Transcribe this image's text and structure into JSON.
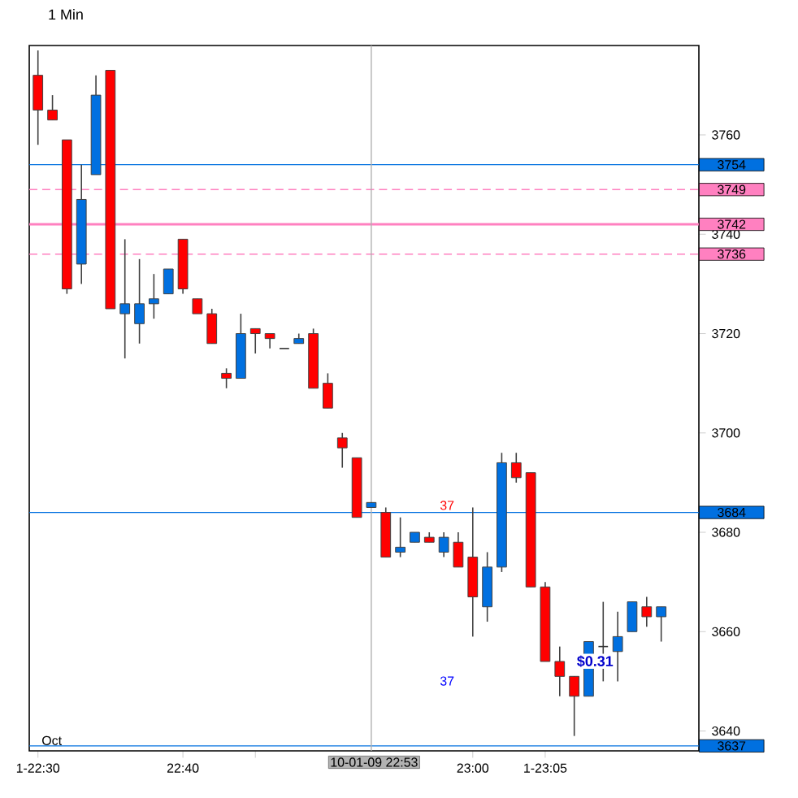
{
  "chart_data": {
    "type": "candlestick",
    "title": "1 Min",
    "x": [
      22.5,
      22.5167,
      22.5333,
      22.55,
      22.5667,
      22.5833,
      22.6,
      22.6167,
      22.6333,
      22.65,
      22.6667,
      22.6833,
      22.7,
      22.7167,
      22.7333,
      22.75,
      22.7667,
      22.7833,
      22.8,
      22.8167,
      22.8333,
      22.85,
      22.8667,
      22.8833,
      22.9,
      22.9167,
      22.9333,
      22.95,
      22.9667,
      22.9833,
      23.0,
      23.0167,
      23.0333,
      23.05,
      23.0667,
      23.0833,
      23.1,
      23.1167,
      23.1333,
      23.15,
      23.1667,
      23.1833,
      23.2,
      23.2167
    ],
    "ohlc": [
      [
        3772,
        3777,
        3758,
        3765
      ],
      [
        3765,
        3768,
        3763,
        3763
      ],
      [
        3759,
        3759,
        3728,
        3729
      ],
      [
        3734,
        3754,
        3730,
        3747
      ],
      [
        3752,
        3772,
        3752,
        3768
      ],
      [
        3773,
        3773,
        3725,
        3725
      ],
      [
        3724,
        3739,
        3715,
        3726
      ],
      [
        3722,
        3735,
        3718,
        3726
      ],
      [
        3726,
        3732,
        3723,
        3727
      ],
      [
        3728,
        3733,
        3728,
        3733
      ],
      [
        3739,
        3739,
        3728,
        3729
      ],
      [
        3727,
        3727,
        3724,
        3724
      ],
      [
        3724,
        3725,
        3718,
        3718
      ],
      [
        3712,
        3713,
        3709,
        3711
      ],
      [
        3711,
        3724,
        3711,
        3720
      ],
      [
        3721,
        3721,
        3716,
        3720
      ],
      [
        3720,
        3720,
        3717,
        3719
      ],
      [
        3717,
        3717,
        3717,
        3717
      ],
      [
        3718,
        3720,
        3718,
        3719
      ],
      [
        3720,
        3721,
        3709,
        3709
      ],
      [
        3710,
        3712,
        3705,
        3705
      ],
      [
        3699,
        3700,
        3693,
        3697
      ],
      [
        3695,
        3695,
        3683,
        3683
      ],
      [
        3685,
        3686,
        3685,
        3686
      ],
      [
        3684,
        3685,
        3675,
        3675
      ],
      [
        3676,
        3683,
        3675,
        3677
      ],
      [
        3678,
        3680,
        3678,
        3680
      ],
      [
        3679,
        3680,
        3678,
        3678
      ],
      [
        3676,
        3680,
        3675,
        3679
      ],
      [
        3678,
        3680,
        3673,
        3673
      ],
      [
        3675,
        3685,
        3659,
        3667
      ],
      [
        3665,
        3676,
        3662,
        3673
      ],
      [
        3673,
        3696,
        3672,
        3694
      ],
      [
        3694,
        3696,
        3690,
        3691
      ],
      [
        3692,
        3692,
        3669,
        3669
      ],
      [
        3669,
        3670,
        3654,
        3654
      ],
      [
        3654,
        3657,
        3647,
        3651
      ],
      [
        3651,
        3651,
        3639,
        3647
      ],
      [
        3647,
        3658,
        3647,
        3658
      ],
      [
        3657,
        3666,
        3650,
        3657
      ],
      [
        3656,
        3664,
        3650,
        3659
      ],
      [
        3660,
        3666,
        3660,
        3666
      ],
      [
        3665,
        3667,
        3661,
        3663
      ],
      [
        3663,
        3665,
        3658,
        3665
      ]
    ],
    "colors": [
      "#ff0000",
      "#ff0000",
      "#ff0000",
      "#0070e0",
      "#0070e0",
      "#ff0000",
      "#0070e0",
      "#0070e0",
      "#0070e0",
      "#0070e0",
      "#ff0000",
      "#ff0000",
      "#ff0000",
      "#ff0000",
      "#0070e0",
      "#ff0000",
      "#ff0000",
      "#333333",
      "#0070e0",
      "#ff0000",
      "#ff0000",
      "#ff0000",
      "#ff0000",
      "#0070e0",
      "#ff0000",
      "#0070e0",
      "#0070e0",
      "#ff0000",
      "#0070e0",
      "#ff0000",
      "#ff0000",
      "#0070e0",
      "#0070e0",
      "#ff0000",
      "#ff0000",
      "#ff0000",
      "#ff0000",
      "#ff0000",
      "#0070e0",
      "#333333",
      "#0070e0",
      "#0070e0",
      "#ff0000",
      "#0070e0"
    ],
    "xlim": [
      22.49,
      23.26
    ],
    "ylim": [
      3636,
      3778
    ],
    "xticks": [
      {
        "value": 22.5,
        "label": "1-22:30"
      },
      {
        "value": 22.6667,
        "label": "22:40"
      },
      {
        "value": 22.75,
        "label": null
      },
      {
        "value": 23.0,
        "label": "23:00"
      },
      {
        "value": 23.0833,
        "label": "1-23:05"
      }
    ],
    "yticks": [
      3640,
      3660,
      3680,
      3700,
      3720,
      3740,
      3760
    ],
    "ref_lines": [
      {
        "axis": "y",
        "value": 3754,
        "label": "3754",
        "color": "#0070e0",
        "line_style": "solid"
      },
      {
        "axis": "y",
        "value": 3749,
        "label": "3749",
        "color": "#ff80c0",
        "line_style": "dashed"
      },
      {
        "axis": "y",
        "value": 3742,
        "label": "3742",
        "color": "#ff80c0",
        "line_style": "solid"
      },
      {
        "axis": "y",
        "value": 3736,
        "label": "3736",
        "color": "#ff80c0",
        "line_style": "dashed"
      },
      {
        "axis": "y",
        "value": 3684,
        "label": "3684",
        "color": "#0070e0",
        "line_style": "solid"
      },
      {
        "axis": "y",
        "value": 3637,
        "label": "3637",
        "color": "#0070e0",
        "line_style": "solid"
      },
      {
        "axis": "x",
        "value": 22.8833,
        "color": "#b0b0b0",
        "line_style": "solid"
      }
    ],
    "annotations": [
      "37",
      "37",
      "$0.31",
      "Oct",
      "10-01-09 22:53"
    ],
    "grid": false
  }
}
